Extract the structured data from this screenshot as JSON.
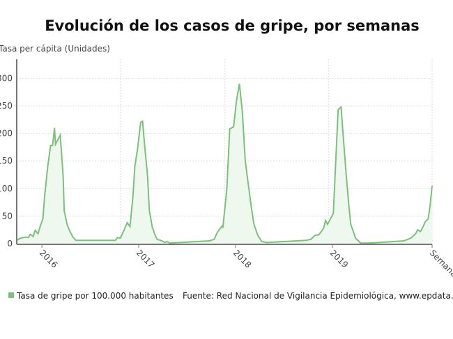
{
  "chart_data": {
    "type": "area",
    "title": "Evolución de los casos de gripe, por semanas",
    "ylabel": "Tasa per cápita (Unidades)",
    "xlabel": "Semana",
    "ylim": [
      0,
      330
    ],
    "xlim": [
      2015.74,
      2020.03
    ],
    "yticks": [
      0,
      50,
      100,
      150,
      200,
      250,
      300
    ],
    "xticks": [
      {
        "value": 2016.0,
        "label": "2016"
      },
      {
        "value": 2017.0,
        "label": "2017"
      },
      {
        "value": 2018.0,
        "label": "2018"
      },
      {
        "value": 2019.0,
        "label": "2019"
      },
      {
        "value": 2020.03,
        "label": "Semana"
      }
    ],
    "vgrid": [
      2016.81,
      2017.89,
      2018.96,
      2020.03
    ],
    "grid": true,
    "legend_placement": "bottom-left",
    "color": "#7cc07c",
    "fill_color": "#eef8ee",
    "series": [
      {
        "name": "Tasa de gripe por 100.000 habitantes",
        "x": [
          2015.74,
          2015.78,
          2015.83,
          2015.86,
          2015.88,
          2015.91,
          2015.93,
          2015.96,
          2015.98,
          2016.01,
          2016.03,
          2016.06,
          2016.09,
          2016.11,
          2016.13,
          2016.14,
          2016.17,
          2016.19,
          2016.22,
          2016.23,
          2016.26,
          2016.29,
          2016.32,
          2016.35,
          2016.76,
          2016.78,
          2016.81,
          2016.85,
          2016.88,
          2016.91,
          2016.94,
          2016.96,
          2016.99,
          2017.02,
          2017.04,
          2017.06,
          2017.09,
          2017.11,
          2017.14,
          2017.17,
          2017.19,
          2017.24,
          2017.27,
          2017.29,
          2017.32,
          2017.73,
          2017.78,
          2017.81,
          2017.86,
          2017.87,
          2017.91,
          2017.94,
          2017.98,
          2018.01,
          2018.04,
          2018.07,
          2018.1,
          2018.13,
          2018.16,
          2018.19,
          2018.23,
          2018.27,
          2018.32,
          2018.73,
          2018.78,
          2018.82,
          2018.86,
          2018.91,
          2018.93,
          2018.95,
          2018.98,
          2019.01,
          2019.04,
          2019.06,
          2019.09,
          2019.11,
          2019.14,
          2019.17,
          2019.19,
          2019.22,
          2019.24,
          2019.27,
          2019.29,
          2019.38,
          2019.74,
          2019.81,
          2019.86,
          2019.88,
          2019.91,
          2019.94,
          2019.96,
          2019.99,
          2020.01,
          2020.03
        ],
        "y": [
          6,
          10,
          12,
          11,
          17,
          13,
          24,
          18,
          30,
          45,
          90,
          140,
          178,
          178,
          210,
          180,
          190,
          197,
          120,
          60,
          35,
          22,
          12,
          6,
          6,
          11,
          10,
          25,
          38,
          31,
          85,
          140,
          175,
          220,
          222,
          180,
          125,
          60,
          30,
          15,
          8,
          5,
          2,
          4,
          1,
          5,
          8,
          20,
          32,
          30,
          100,
          208,
          212,
          260,
          290,
          240,
          150,
          110,
          70,
          35,
          15,
          4,
          2,
          6,
          8,
          15,
          16,
          28,
          42,
          35,
          45,
          55,
          170,
          243,
          248,
          200,
          130,
          70,
          35,
          20,
          10,
          5,
          1,
          1,
          5,
          10,
          18,
          25,
          22,
          32,
          40,
          45,
          70,
          105
        ]
      }
    ],
    "source": "Fuente: Red Nacional de Vigilancia Epidemiológica, www.epdata.es"
  }
}
